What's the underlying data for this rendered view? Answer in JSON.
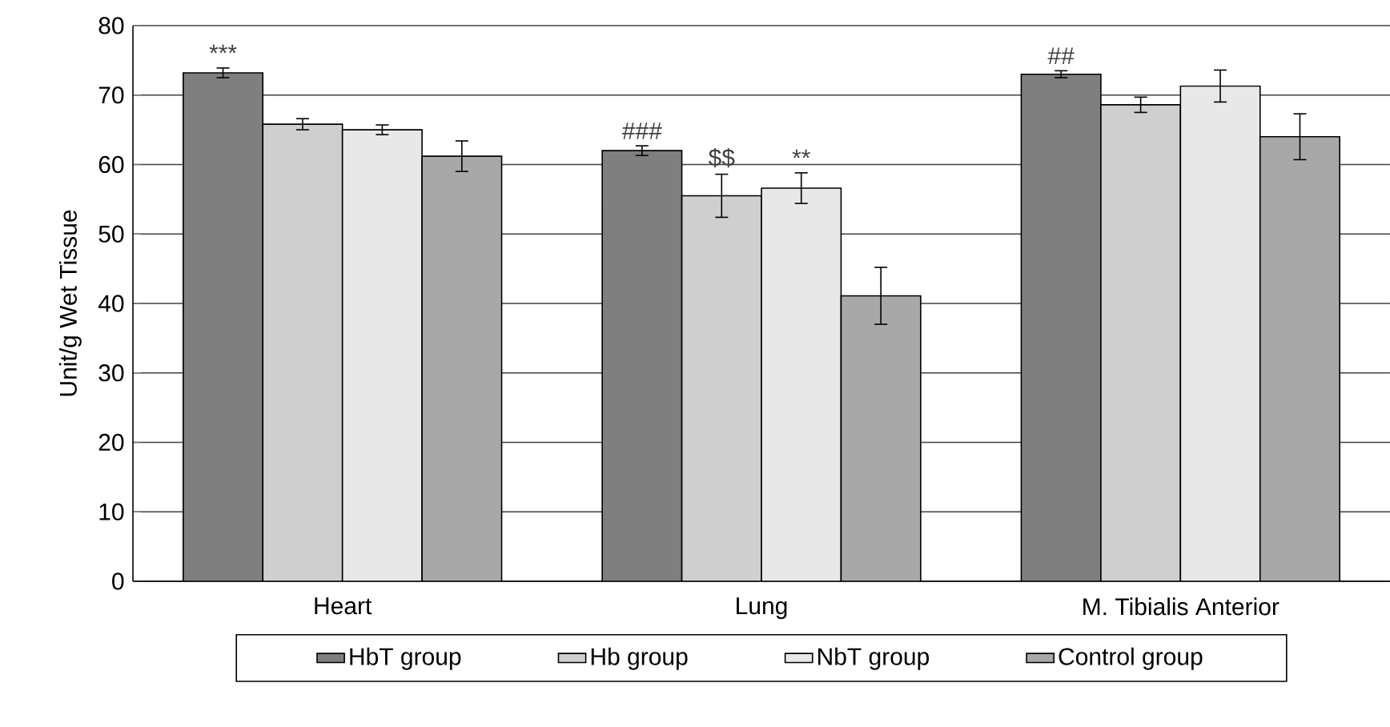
{
  "chart_data": {
    "type": "bar",
    "ylabel": "Unit/g Wet Tissue",
    "categories": [
      "Heart",
      "Lung",
      "M. Tibialis Anterior"
    ],
    "series": [
      {
        "name": "HbT group",
        "color": "#7f7f7f",
        "values": [
          73.2,
          62.0,
          73.0
        ],
        "errors": [
          0.7,
          0.7,
          0.5
        ],
        "value_labels": [
          "***",
          "###",
          "##"
        ]
      },
      {
        "name": "Hb group",
        "color": "#cfcfcf",
        "values": [
          65.8,
          55.5,
          68.6
        ],
        "errors": [
          0.8,
          3.1,
          1.1
        ],
        "value_labels": [
          null,
          "$$",
          null
        ]
      },
      {
        "name": "NbT group",
        "color": "#e8e8e8",
        "values": [
          65.0,
          56.6,
          71.3
        ],
        "errors": [
          0.7,
          2.2,
          2.3
        ],
        "value_labels": [
          null,
          "**",
          null
        ]
      },
      {
        "name": "Control group",
        "color": "#a8a8a8",
        "values": [
          61.2,
          41.1,
          64.0
        ],
        "errors": [
          2.2,
          4.1,
          3.3
        ]
      }
    ],
    "ylim": [
      0,
      80
    ],
    "yticks": [
      0,
      10,
      20,
      30,
      40,
      50,
      60,
      70,
      80
    ],
    "grid": "y",
    "legend": "bottom"
  }
}
